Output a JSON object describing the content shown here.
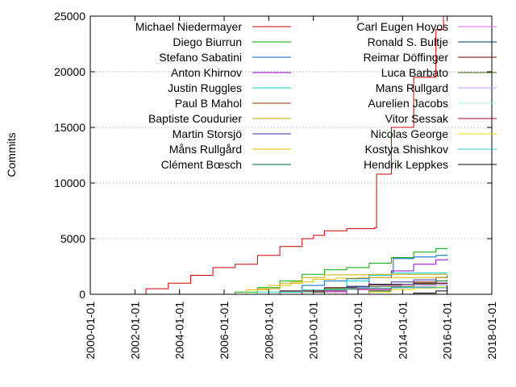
{
  "chart_data": {
    "type": "line",
    "title": "",
    "xlabel": "",
    "ylabel": "Commits",
    "x_ticks": [
      "2000-01-01",
      "2002-01-01",
      "2004-01-01",
      "2006-01-01",
      "2008-01-01",
      "2010-01-01",
      "2012-01-01",
      "2014-01-01",
      "2016-01-01",
      "2018-01-01"
    ],
    "y_ticks": [
      0,
      5000,
      10000,
      15000,
      20000,
      25000
    ],
    "xlim": [
      "2000-01-01",
      "2018-01-01"
    ],
    "ylim": [
      0,
      25000
    ],
    "grid": "y-dotted",
    "legend": "inside top, two columns",
    "series": [
      {
        "name": "Michael Niedermayer",
        "color": "#cc0000",
        "x": [
          "2001-07-01",
          "2002-07-01",
          "2003-07-01",
          "2004-07-01",
          "2005-07-01",
          "2006-07-01",
          "2007-07-01",
          "2008-07-01",
          "2009-07-01",
          "2010-01-01",
          "2010-07-01",
          "2011-07-01",
          "2012-10-01",
          "2012-11-01",
          "2013-07-01",
          "2014-07-01",
          "2015-07-01",
          "2015-11-01"
        ],
        "values": [
          0,
          500,
          1000,
          1700,
          2400,
          2700,
          3500,
          4300,
          5000,
          5300,
          5700,
          5900,
          6000,
          10800,
          15000,
          19500,
          23800,
          25000
        ]
      },
      {
        "name": "Diego Biurrun",
        "color": "#00aa00",
        "x": [
          "2005-07-01",
          "2006-07-01",
          "2007-07-01",
          "2008-07-01",
          "2009-07-01",
          "2010-07-01",
          "2011-07-01",
          "2012-07-01",
          "2013-07-01",
          "2014-07-01",
          "2015-07-01",
          "2016-01-01"
        ],
        "values": [
          0,
          200,
          600,
          1200,
          1800,
          2200,
          2400,
          2800,
          3300,
          3800,
          4100,
          4150
        ]
      },
      {
        "name": "Stefano Sabatini",
        "color": "#0066cc",
        "x": [
          "2007-07-01",
          "2008-07-01",
          "2009-07-01",
          "2010-07-01",
          "2011-07-01",
          "2012-07-01",
          "2013-07-01",
          "2013-08-01",
          "2014-07-01",
          "2015-07-01",
          "2016-01-01"
        ],
        "values": [
          0,
          300,
          800,
          1200,
          1400,
          1700,
          2000,
          3200,
          3350,
          3500,
          3550
        ]
      },
      {
        "name": "Anton Khirnov",
        "color": "#9900cc",
        "x": [
          "2010-07-01",
          "2011-07-01",
          "2012-07-01",
          "2013-07-01",
          "2014-07-01",
          "2015-07-01",
          "2016-01-01"
        ],
        "values": [
          0,
          700,
          1500,
          2100,
          2700,
          3100,
          3200
        ]
      },
      {
        "name": "Justin Ruggles",
        "color": "#00cccc",
        "x": [
          "2006-07-01",
          "2008-07-01",
          "2010-07-01",
          "2011-07-01",
          "2012-07-01",
          "2013-07-01",
          "2016-01-01"
        ],
        "values": [
          0,
          200,
          500,
          1200,
          1700,
          1900,
          1950
        ]
      },
      {
        "name": "Paul B Mahol",
        "color": "#993300",
        "x": [
          "2011-07-01",
          "2012-07-01",
          "2013-07-01",
          "2014-07-01",
          "2015-07-01",
          "2016-01-01"
        ],
        "values": [
          0,
          300,
          700,
          1100,
          1500,
          1700
        ]
      },
      {
        "name": "Baptiste Coudurier",
        "color": "#ccaa00",
        "x": [
          "2006-07-01",
          "2007-07-01",
          "2008-07-01",
          "2009-07-01",
          "2010-07-01",
          "2012-07-01",
          "2016-01-01"
        ],
        "values": [
          0,
          500,
          1000,
          1500,
          1750,
          1800,
          1800
        ]
      },
      {
        "name": "Martin Storsjö",
        "color": "#3333aa",
        "x": [
          "2009-07-01",
          "2010-07-01",
          "2011-07-01",
          "2012-07-01",
          "2013-07-01",
          "2014-07-01",
          "2015-07-01",
          "2016-01-01"
        ],
        "values": [
          0,
          300,
          600,
          900,
          1100,
          1300,
          1500,
          1600
        ]
      },
      {
        "name": "Måns Rullgård",
        "color": "#ddbb00",
        "x": [
          "2006-01-01",
          "2007-01-01",
          "2008-01-01",
          "2009-01-01",
          "2010-01-01",
          "2011-01-01",
          "2012-01-01",
          "2016-01-01"
        ],
        "values": [
          0,
          400,
          800,
          1100,
          1350,
          1450,
          1500,
          1500
        ]
      },
      {
        "name": "Clément Bœsch",
        "color": "#006633",
        "x": [
          "2011-07-01",
          "2012-07-01",
          "2013-07-01",
          "2014-07-01",
          "2015-07-01",
          "2016-01-01"
        ],
        "values": [
          0,
          300,
          600,
          900,
          1200,
          1300
        ]
      },
      {
        "name": "Carl Eugen Hoyos",
        "color": "#dd66dd",
        "x": [
          "2007-07-01",
          "2009-07-01",
          "2011-07-01",
          "2013-07-01",
          "2015-07-01",
          "2016-01-01"
        ],
        "values": [
          0,
          200,
          400,
          700,
          1000,
          1100
        ]
      },
      {
        "name": "Ronald S. Bultje",
        "color": "#003366",
        "x": [
          "2008-07-01",
          "2010-07-01",
          "2011-07-01",
          "2012-07-01",
          "2014-07-01",
          "2016-01-01"
        ],
        "values": [
          0,
          400,
          700,
          900,
          1000,
          1050
        ]
      },
      {
        "name": "Reimar Döffinger",
        "color": "#660000",
        "x": [
          "2006-07-01",
          "2008-07-01",
          "2010-07-01",
          "2012-07-01",
          "2014-07-01",
          "2016-01-01"
        ],
        "values": [
          0,
          300,
          600,
          850,
          1000,
          1050
        ]
      },
      {
        "name": "Luca Barbato",
        "color": "#336600",
        "x": [
          "2006-07-01",
          "2008-07-01",
          "2010-07-01",
          "2012-07-01",
          "2014-07-01",
          "2016-01-01"
        ],
        "values": [
          0,
          200,
          500,
          700,
          850,
          900
        ]
      },
      {
        "name": "Mans Rullgard",
        "color": "#cc99ff",
        "x": [
          "2010-01-01",
          "2011-01-01",
          "2012-01-01",
          "2013-01-01",
          "2014-01-01",
          "2016-01-01"
        ],
        "values": [
          0,
          400,
          600,
          750,
          850,
          900
        ]
      },
      {
        "name": "Aurelien Jacobs",
        "color": "#99ffcc",
        "x": [
          "2006-01-01",
          "2008-01-01",
          "2010-01-01",
          "2012-01-01",
          "2014-01-01",
          "2016-01-01"
        ],
        "values": [
          0,
          200,
          400,
          550,
          650,
          700
        ]
      },
      {
        "name": "Vitor Sessak",
        "color": "#990033",
        "x": [
          "2007-07-01",
          "2009-07-01",
          "2011-07-01",
          "2013-07-01",
          "2016-01-01"
        ],
        "values": [
          0,
          300,
          500,
          600,
          650
        ]
      },
      {
        "name": "Nicolas George",
        "color": "#eedd00",
        "x": [
          "2011-07-01",
          "2012-07-01",
          "2013-07-01",
          "2014-07-01",
          "2015-07-01",
          "2016-01-01"
        ],
        "values": [
          0,
          200,
          400,
          550,
          650,
          700
        ]
      },
      {
        "name": "Kostya Shishkov",
        "color": "#33cccc",
        "x": [
          "2005-07-01",
          "2007-07-01",
          "2009-07-01",
          "2011-07-01",
          "2013-07-01",
          "2016-01-01"
        ],
        "values": [
          0,
          200,
          400,
          550,
          600,
          650
        ]
      },
      {
        "name": "Hendrik Leppkes",
        "color": "#000000",
        "x": [
          "2013-07-01",
          "2014-07-01",
          "2015-07-01",
          "2016-01-01"
        ],
        "values": [
          0,
          100,
          300,
          800
        ]
      }
    ]
  }
}
